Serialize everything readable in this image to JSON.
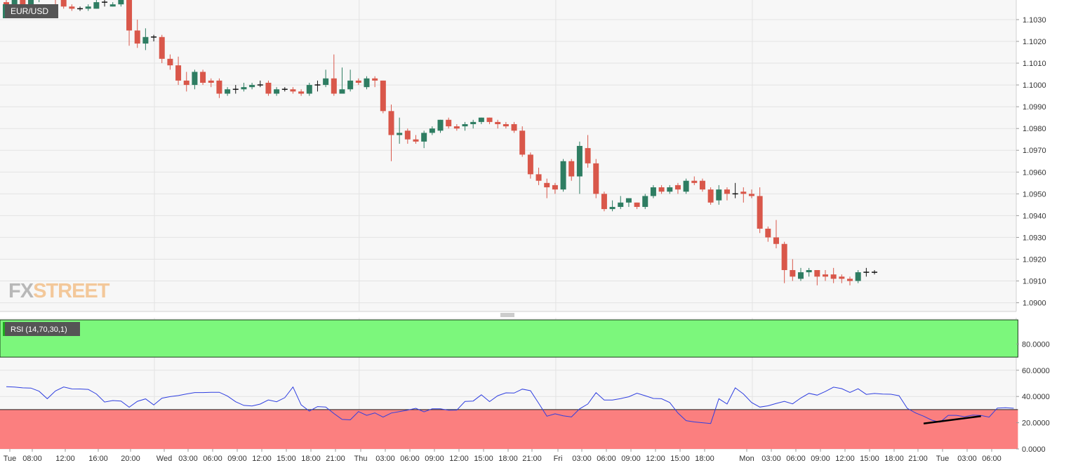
{
  "colors": {
    "up_candle": "#2e7d62",
    "down_candle": "#d9574a",
    "rsi_line": "#2f3fe0",
    "overbought_fill": "#7cf77c",
    "oversold_fill": "#fb7f7f",
    "plot_background": "#f7f7f7",
    "grid": "#e3e3e3",
    "label_background": "#555555",
    "trendline": "#000000",
    "watermark_fx": "#b8b8b8",
    "watermark_street": "#f3c89a"
  },
  "watermark": {
    "part1": "FX",
    "part2": "STREET"
  },
  "chart_data": [
    {
      "type": "candlestick",
      "label": "EUR/USD",
      "ylim": [
        1.0896,
        1.1039
      ],
      "y_ticks": [
        "1.0900",
        "1.0910",
        "1.0920",
        "1.0930",
        "1.0940",
        "1.0950",
        "1.0960",
        "1.0970",
        "1.0980",
        "1.0990",
        "1.1000",
        "1.1010",
        "1.1020",
        "1.1030"
      ],
      "grid": true,
      "candles": [
        {
          "o": 1.1038,
          "h": 1.1041,
          "l": 1.1033,
          "c": 1.1037
        },
        {
          "o": 1.1037,
          "h": 1.104,
          "l": 1.1034,
          "c": 1.1039
        },
        {
          "o": 1.1039,
          "h": 1.1041,
          "l": 1.1036,
          "c": 1.1037
        },
        {
          "o": 1.1037,
          "h": 1.104,
          "l": 1.1036,
          "c": 1.104
        },
        {
          "o": 1.104,
          "h": 1.1042,
          "l": 1.1038,
          "c": 1.1041
        },
        {
          "o": 1.1041,
          "h": 1.1043,
          "l": 1.1039,
          "c": 1.104
        },
        {
          "o": 1.104,
          "h": 1.1041,
          "l": 1.1037,
          "c": 1.1039
        },
        {
          "o": 1.1039,
          "h": 1.1041,
          "l": 1.1035,
          "c": 1.1036
        },
        {
          "o": 1.1036,
          "h": 1.1037,
          "l": 1.1034,
          "c": 1.1035
        },
        {
          "o": 1.1035,
          "h": 1.1036,
          "l": 1.1034,
          "c": 1.1035
        },
        {
          "o": 1.1035,
          "h": 1.1037,
          "l": 1.1034,
          "c": 1.1036
        },
        {
          "o": 1.1035,
          "h": 1.1039,
          "l": 1.1035,
          "c": 1.1038
        },
        {
          "o": 1.1038,
          "h": 1.1041,
          "l": 1.1036,
          "c": 1.1038
        },
        {
          "o": 1.1036,
          "h": 1.1038,
          "l": 1.1036,
          "c": 1.1037
        },
        {
          "o": 1.1037,
          "h": 1.1042,
          "l": 1.1036,
          "c": 1.1039
        },
        {
          "o": 1.1039,
          "h": 1.104,
          "l": 1.1018,
          "c": 1.1025
        },
        {
          "o": 1.1025,
          "h": 1.103,
          "l": 1.1017,
          "c": 1.1019
        },
        {
          "o": 1.1019,
          "h": 1.1026,
          "l": 1.1016,
          "c": 1.1022
        },
        {
          "o": 1.1022,
          "h": 1.1023,
          "l": 1.102,
          "c": 1.1022
        },
        {
          "o": 1.1022,
          "h": 1.1023,
          "l": 1.101,
          "c": 1.1012
        },
        {
          "o": 1.1012,
          "h": 1.1014,
          "l": 1.1007,
          "c": 1.1009
        },
        {
          "o": 1.1009,
          "h": 1.1013,
          "l": 1.1,
          "c": 1.1002
        },
        {
          "o": 1.1002,
          "h": 1.1006,
          "l": 1.0997,
          "c": 1.1
        },
        {
          "o": 1.1,
          "h": 1.1007,
          "l": 1.0998,
          "c": 1.1006
        },
        {
          "o": 1.1006,
          "h": 1.1007,
          "l": 1.1,
          "c": 1.1001
        },
        {
          "o": 1.1002,
          "h": 1.1003,
          "l": 1.0999,
          "c": 1.1001
        },
        {
          "o": 1.1002,
          "h": 1.1003,
          "l": 1.0994,
          "c": 1.0996
        },
        {
          "o": 1.0996,
          "h": 1.0999,
          "l": 1.0995,
          "c": 1.0998
        },
        {
          "o": 1.0998,
          "h": 1.1,
          "l": 1.0996,
          "c": 1.0998
        },
        {
          "o": 1.0998,
          "h": 1.1001,
          "l": 1.0997,
          "c": 1.0999
        },
        {
          "o": 1.0999,
          "h": 1.1001,
          "l": 1.0998,
          "c": 1.1
        },
        {
          "o": 1.1,
          "h": 1.1002,
          "l": 1.0999,
          "c": 1.1
        },
        {
          "o": 1.1001,
          "h": 1.1002,
          "l": 1.0995,
          "c": 1.0996
        },
        {
          "o": 1.0996,
          "h": 1.0999,
          "l": 1.0995,
          "c": 1.0998
        },
        {
          "o": 1.0998,
          "h": 1.0999,
          "l": 1.0997,
          "c": 1.0998
        },
        {
          "o": 1.0998,
          "h": 1.0999,
          "l": 1.0996,
          "c": 1.0997
        },
        {
          "o": 1.0997,
          "h": 1.0998,
          "l": 1.0995,
          "c": 1.0996
        },
        {
          "o": 1.0996,
          "h": 1.1001,
          "l": 1.0995,
          "c": 1.1
        },
        {
          "o": 1.1,
          "h": 1.1002,
          "l": 1.0997,
          "c": 1.1
        },
        {
          "o": 1.1,
          "h": 1.1007,
          "l": 1.0999,
          "c": 1.1003
        },
        {
          "o": 1.1003,
          "h": 1.1014,
          "l": 1.0995,
          "c": 1.0996
        },
        {
          "o": 1.0996,
          "h": 1.1008,
          "l": 1.0996,
          "c": 1.0998
        },
        {
          "o": 1.0998,
          "h": 1.1007,
          "l": 1.0997,
          "c": 1.1002
        },
        {
          "o": 1.1002,
          "h": 1.1003,
          "l": 1.1,
          "c": 1.1001
        },
        {
          "o": 1.0999,
          "h": 1.1004,
          "l": 1.0998,
          "c": 1.1003
        },
        {
          "o": 1.1003,
          "h": 1.1004,
          "l": 1.0999,
          "c": 1.1002
        },
        {
          "o": 1.1002,
          "h": 1.1002,
          "l": 1.0987,
          "c": 1.0988
        },
        {
          "o": 1.0988,
          "h": 1.0991,
          "l": 1.0965,
          "c": 1.0977
        },
        {
          "o": 1.0977,
          "h": 1.0985,
          "l": 1.0973,
          "c": 1.0978
        },
        {
          "o": 1.0979,
          "h": 1.098,
          "l": 1.0973,
          "c": 1.0975
        },
        {
          "o": 1.0975,
          "h": 1.0977,
          "l": 1.0973,
          "c": 1.0974
        },
        {
          "o": 1.0974,
          "h": 1.0979,
          "l": 1.0971,
          "c": 1.0978
        },
        {
          "o": 1.0978,
          "h": 1.0981,
          "l": 1.0977,
          "c": 1.098
        },
        {
          "o": 1.0979,
          "h": 1.0984,
          "l": 1.0978,
          "c": 1.0984
        },
        {
          "o": 1.0984,
          "h": 1.0985,
          "l": 1.098,
          "c": 1.0981
        },
        {
          "o": 1.0981,
          "h": 1.0982,
          "l": 1.0979,
          "c": 1.098
        },
        {
          "o": 1.0981,
          "h": 1.0983,
          "l": 1.0979,
          "c": 1.0982
        },
        {
          "o": 1.0982,
          "h": 1.0984,
          "l": 1.098,
          "c": 1.0983
        },
        {
          "o": 1.0983,
          "h": 1.0985,
          "l": 1.0982,
          "c": 1.0985
        },
        {
          "o": 1.0985,
          "h": 1.0985,
          "l": 1.0982,
          "c": 1.0983
        },
        {
          "o": 1.0983,
          "h": 1.0984,
          "l": 1.098,
          "c": 1.0982
        },
        {
          "o": 1.0982,
          "h": 1.0983,
          "l": 1.098,
          "c": 1.0981
        },
        {
          "o": 1.0982,
          "h": 1.0983,
          "l": 1.0978,
          "c": 1.0979
        },
        {
          "o": 1.0979,
          "h": 1.0981,
          "l": 1.0967,
          "c": 1.0968
        },
        {
          "o": 1.0968,
          "h": 1.0969,
          "l": 1.0957,
          "c": 1.0959
        },
        {
          "o": 1.0959,
          "h": 1.0962,
          "l": 1.0954,
          "c": 1.0956
        },
        {
          "o": 1.0955,
          "h": 1.0957,
          "l": 1.0948,
          "c": 1.0953
        },
        {
          "o": 1.0954,
          "h": 1.0955,
          "l": 1.095,
          "c": 1.0952
        },
        {
          "o": 1.0952,
          "h": 1.0966,
          "l": 1.0951,
          "c": 1.0965
        },
        {
          "o": 1.0965,
          "h": 1.0966,
          "l": 1.0956,
          "c": 1.0958
        },
        {
          "o": 1.0958,
          "h": 1.0974,
          "l": 1.095,
          "c": 1.0972
        },
        {
          "o": 1.0971,
          "h": 1.0977,
          "l": 1.0962,
          "c": 1.0964
        },
        {
          "o": 1.0964,
          "h": 1.0966,
          "l": 1.0948,
          "c": 1.095
        },
        {
          "o": 1.095,
          "h": 1.0951,
          "l": 1.0942,
          "c": 1.0943
        },
        {
          "o": 1.0943,
          "h": 1.0947,
          "l": 1.0942,
          "c": 1.0944
        },
        {
          "o": 1.0944,
          "h": 1.0949,
          "l": 1.0943,
          "c": 1.0946
        },
        {
          "o": 1.0946,
          "h": 1.0948,
          "l": 1.0944,
          "c": 1.0948
        },
        {
          "o": 1.0946,
          "h": 1.0946,
          "l": 1.0943,
          "c": 1.0944
        },
        {
          "o": 1.0944,
          "h": 1.095,
          "l": 1.0943,
          "c": 1.0949
        },
        {
          "o": 1.0949,
          "h": 1.0954,
          "l": 1.0948,
          "c": 1.0953
        },
        {
          "o": 1.0953,
          "h": 1.0954,
          "l": 1.095,
          "c": 1.0951
        },
        {
          "o": 1.0951,
          "h": 1.0954,
          "l": 1.095,
          "c": 1.0953
        },
        {
          "o": 1.0954,
          "h": 1.0955,
          "l": 1.095,
          "c": 1.0952
        },
        {
          "o": 1.0951,
          "h": 1.0957,
          "l": 1.095,
          "c": 1.0956
        },
        {
          "o": 1.0956,
          "h": 1.0958,
          "l": 1.0954,
          "c": 1.0955
        },
        {
          "o": 1.0956,
          "h": 1.0957,
          "l": 1.0951,
          "c": 1.0952
        },
        {
          "o": 1.0952,
          "h": 1.0953,
          "l": 1.0945,
          "c": 1.0946
        },
        {
          "o": 1.0947,
          "h": 1.0954,
          "l": 1.0945,
          "c": 1.0952
        },
        {
          "o": 1.0952,
          "h": 1.0953,
          "l": 1.0947,
          "c": 1.095
        },
        {
          "o": 1.095,
          "h": 1.0955,
          "l": 1.0948,
          "c": 1.095
        },
        {
          "o": 1.0951,
          "h": 1.0953,
          "l": 1.0946,
          "c": 1.095
        },
        {
          "o": 1.095,
          "h": 1.0952,
          "l": 1.0948,
          "c": 1.0949
        },
        {
          "o": 1.0949,
          "h": 1.0953,
          "l": 1.0932,
          "c": 1.0934
        },
        {
          "o": 1.0934,
          "h": 1.0935,
          "l": 1.0928,
          "c": 1.093
        },
        {
          "o": 1.093,
          "h": 1.0938,
          "l": 1.0925,
          "c": 1.0927
        },
        {
          "o": 1.0927,
          "h": 1.0928,
          "l": 1.0909,
          "c": 1.0915
        },
        {
          "o": 1.0915,
          "h": 1.092,
          "l": 1.091,
          "c": 1.0912
        },
        {
          "o": 1.0911,
          "h": 1.0916,
          "l": 1.091,
          "c": 1.0914
        },
        {
          "o": 1.0914,
          "h": 1.0916,
          "l": 1.0912,
          "c": 1.0915
        },
        {
          "o": 1.0915,
          "h": 1.0915,
          "l": 1.0908,
          "c": 1.0912
        },
        {
          "o": 1.0913,
          "h": 1.0915,
          "l": 1.091,
          "c": 1.0912
        },
        {
          "o": 1.0913,
          "h": 1.0916,
          "l": 1.0909,
          "c": 1.0911
        },
        {
          "o": 1.0912,
          "h": 1.0913,
          "l": 1.0909,
          "c": 1.0911
        },
        {
          "o": 1.0911,
          "h": 1.0912,
          "l": 1.0908,
          "c": 1.091
        },
        {
          "o": 1.091,
          "h": 1.0915,
          "l": 1.0909,
          "c": 1.0914
        },
        {
          "o": 1.0914,
          "h": 1.0916,
          "l": 1.0912,
          "c": 1.0914
        },
        {
          "o": 1.0914,
          "h": 1.0915,
          "l": 1.0913,
          "c": 1.0914
        }
      ]
    },
    {
      "type": "line",
      "label": "RSI (14,70,30,1)",
      "ylim": [
        0,
        100
      ],
      "y_ticks": [
        "0.0000",
        "20.0000",
        "40.0000",
        "60.0000",
        "80.0000"
      ],
      "overbought": 70,
      "oversold": 30,
      "values": [
        47.5,
        47.2,
        46.6,
        46.4,
        44.0,
        38.3,
        44.2,
        47.2,
        45.8,
        45.7,
        45.4,
        41.9,
        35.8,
        36.9,
        36.5,
        31.8,
        36.3,
        38.2,
        33.6,
        38.7,
        39.9,
        40.7,
        41.9,
        43.0,
        43.0,
        43.2,
        43.2,
        40.3,
        36.0,
        33.2,
        32.8,
        34.2,
        37.4,
        36.0,
        39.1,
        47.2,
        33.6,
        28.9,
        32.3,
        32.0,
        27.0,
        22.5,
        22.2,
        28.5,
        25.6,
        27.5,
        24.3,
        27.4,
        28.5,
        29.6,
        31.0,
        28.3,
        30.6,
        30.6,
        29.5,
        29.6,
        36.2,
        36.5,
        41.3,
        36.1,
        40.6,
        42.8,
        42.6,
        45.6,
        44.4,
        34.8,
        25.0,
        26.8,
        25.3,
        24.4,
        30.6,
        34.3,
        42.9,
        37.3,
        37.3,
        38.4,
        39.8,
        42.5,
        40.6,
        38.5,
        38.3,
        35.4,
        27.4,
        21.6,
        20.6,
        20.0,
        19.4,
        38.3,
        34.3,
        46.6,
        41.9,
        35.4,
        31.9,
        32.9,
        34.7,
        36.3,
        34.4,
        38.8,
        42.4,
        41.0,
        43.8,
        47.1,
        46.0,
        43.1,
        45.9,
        41.6,
        42.3,
        41.8,
        41.7,
        40.6,
        31.0,
        27.5,
        25.0,
        21.9,
        20.4,
        25.6,
        25.6,
        24.6,
        25.8,
        25.5,
        24.3,
        31.2,
        31.4,
        31.0
      ],
      "trendline": {
        "from": {
          "index": 112,
          "value": 19.4
        },
        "to": {
          "index": 119,
          "value": 25.0
        }
      },
      "x_ticks": [
        "Tue",
        "08:00",
        "12:00",
        "16:00",
        "20:00",
        "Wed",
        "03:00",
        "06:00",
        "09:00",
        "12:00",
        "15:00",
        "18:00",
        "21:00",
        "Thu",
        "03:00",
        "06:00",
        "09:00",
        "12:00",
        "15:00",
        "18:00",
        "21:00",
        "Fri",
        "03:00",
        "06:00",
        "09:00",
        "12:00",
        "15:00",
        "18:00",
        "Mon",
        "03:00",
        "06:00",
        "09:00",
        "12:00",
        "15:00",
        "18:00",
        "21:00",
        "Tue",
        "03:00",
        "06:00"
      ]
    }
  ]
}
